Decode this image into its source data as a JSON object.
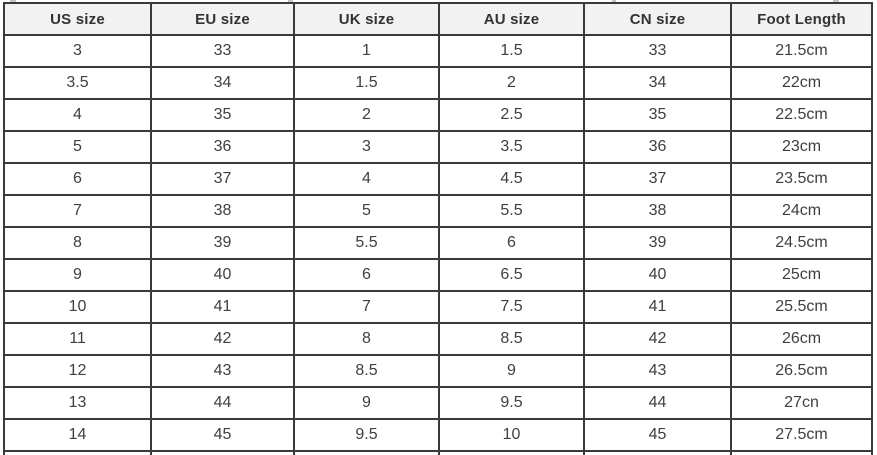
{
  "chart_data": {
    "type": "table",
    "columns": [
      "US size",
      "EU size",
      "UK size",
      "AU size",
      "CN size",
      "Foot Length"
    ],
    "rows": [
      [
        "3",
        "33",
        "1",
        "1.5",
        "33",
        "21.5cm"
      ],
      [
        "3.5",
        "34",
        "1.5",
        "2",
        "34",
        "22cm"
      ],
      [
        "4",
        "35",
        "2",
        "2.5",
        "35",
        "22.5cm"
      ],
      [
        "5",
        "36",
        "3",
        "3.5",
        "36",
        "23cm"
      ],
      [
        "6",
        "37",
        "4",
        "4.5",
        "37",
        "23.5cm"
      ],
      [
        "7",
        "38",
        "5",
        "5.5",
        "38",
        "24cm"
      ],
      [
        "8",
        "39",
        "5.5",
        "6",
        "39",
        "24.5cm"
      ],
      [
        "9",
        "40",
        "6",
        "6.5",
        "40",
        "25cm"
      ],
      [
        "10",
        "41",
        "7",
        "7.5",
        "41",
        "25.5cm"
      ],
      [
        "11",
        "42",
        "8",
        "8.5",
        "42",
        "26cm"
      ],
      [
        "12",
        "43",
        "8.5",
        "9",
        "43",
        "26.5cm"
      ],
      [
        "13",
        "44",
        "9",
        "9.5",
        "44",
        "27cn"
      ],
      [
        "14",
        "45",
        "9.5",
        "10",
        "45",
        "27.5cm"
      ]
    ],
    "partial_last_row_visible": true,
    "grid": true,
    "legend_position": "none"
  },
  "colors": {
    "border": "#3a3a3a",
    "header_background": "#f2f2f2",
    "body_background": "#ffffff",
    "header_text": "#333333",
    "body_text": "#3f3f3f"
  }
}
